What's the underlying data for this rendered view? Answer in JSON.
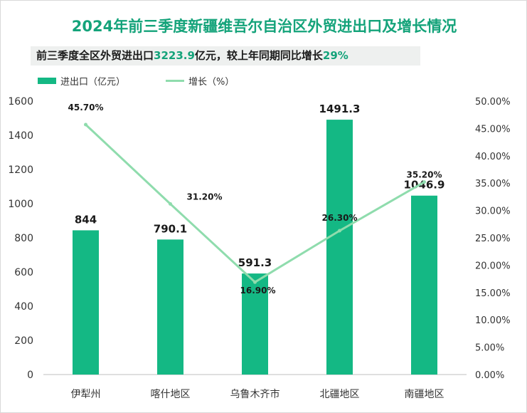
{
  "title": "2024年前三季度新疆维吾尔自治区外贸进出口及增长情况",
  "subtitle": {
    "prefix": "前三季度全区外贸进出口",
    "total": "3223.9",
    "middle": "亿元，较上年同期同比增长",
    "growth": "29%"
  },
  "colors": {
    "title": "#14a37a",
    "bar": "#14b884",
    "line": "#8fdcad"
  },
  "chart_data": {
    "type": "bar",
    "categories": [
      "伊犁州",
      "喀什地区",
      "乌鲁木齐市",
      "北疆地区",
      "南疆地区"
    ],
    "series": [
      {
        "name": "进出口（亿元）",
        "type": "bar",
        "axis": "left",
        "values": [
          844,
          790.1,
          591.3,
          1491.3,
          1046.9
        ],
        "labels": [
          "844",
          "790.1",
          "591.3",
          "1491.3",
          "1046.9"
        ]
      },
      {
        "name": "增长（%）",
        "type": "line",
        "axis": "right",
        "values": [
          45.7,
          31.2,
          16.9,
          26.3,
          35.2
        ],
        "labels": [
          "45.70%",
          "31.20%",
          "16.90%",
          "26.30%",
          "35.20%"
        ]
      }
    ],
    "left_axis": {
      "ylim": [
        0,
        1600
      ],
      "ticks": [
        "0",
        "200",
        "400",
        "600",
        "800",
        "1000",
        "1200",
        "1400",
        "1600"
      ]
    },
    "right_axis": {
      "ylim": [
        0,
        50
      ],
      "ticks": [
        "0.00%",
        "5.00%",
        "10.00%",
        "15.00%",
        "20.00%",
        "25.00%",
        "30.00%",
        "35.00%",
        "40.00%",
        "45.00%",
        "50.00%"
      ]
    },
    "grid": false,
    "legend_position": "top-left"
  }
}
